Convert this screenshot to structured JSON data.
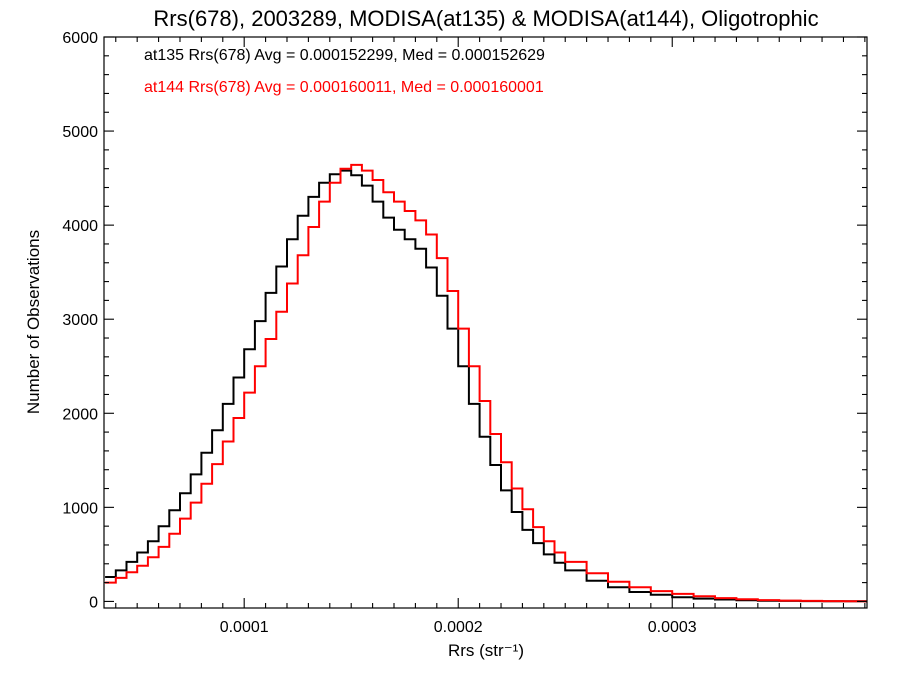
{
  "chart_data": {
    "type": "line",
    "title": "Rrs(678), 2003289, MODISA(at135) & MODISA(at144), Oligotrophic",
    "xlabel": "Rrs (str⁻¹)",
    "ylabel": "Number of Observations",
    "xlim": [
      3.45e-05,
      0.000391
    ],
    "ylim": [
      -70,
      6000
    ],
    "x_ticks": [
      0.0001,
      0.0002,
      0.0003
    ],
    "x_tick_labels": [
      "0.0001",
      "0.0002",
      "0.0003"
    ],
    "y_ticks": [
      0,
      1000,
      2000,
      3000,
      4000,
      5000,
      6000
    ],
    "y_tick_labels": [
      "0",
      "1000",
      "2000",
      "3000",
      "4000",
      "5000",
      "6000"
    ],
    "grid": false,
    "legend_position": "top-left",
    "series": [
      {
        "name": "at135",
        "label": "at135 Rrs(678) Avg = 0.000152299, Med = 0.000152629",
        "color": "#000000",
        "x": [
          3.5e-05,
          4e-05,
          4.5e-05,
          5e-05,
          5.5e-05,
          6e-05,
          6.5e-05,
          7e-05,
          7.5e-05,
          8e-05,
          8.5e-05,
          9e-05,
          9.5e-05,
          0.0001,
          0.000105,
          0.00011,
          0.000115,
          0.00012,
          0.000125,
          0.00013,
          0.000135,
          0.00014,
          0.000145,
          0.00015,
          0.000155,
          0.00016,
          0.000165,
          0.00017,
          0.000175,
          0.00018,
          0.000185,
          0.00019,
          0.000195,
          0.0002,
          0.000205,
          0.00021,
          0.000215,
          0.00022,
          0.000225,
          0.00023,
          0.000235,
          0.00024,
          0.000245,
          0.00025,
          0.00026,
          0.00027,
          0.00028,
          0.00029,
          0.0003,
          0.00031,
          0.00032,
          0.00033,
          0.00034,
          0.00035,
          0.00036,
          0.00037,
          0.00038,
          0.00039
        ],
        "y": [
          260,
          330,
          420,
          520,
          640,
          800,
          970,
          1150,
          1350,
          1580,
          1820,
          2100,
          2380,
          2680,
          2980,
          3280,
          3560,
          3850,
          4100,
          4300,
          4450,
          4540,
          4580,
          4530,
          4420,
          4250,
          4080,
          3950,
          3850,
          3750,
          3550,
          3250,
          2900,
          2500,
          2100,
          1750,
          1450,
          1180,
          950,
          760,
          620,
          500,
          410,
          330,
          220,
          150,
          100,
          70,
          45,
          30,
          20,
          12,
          8,
          5,
          3,
          2,
          1,
          0
        ]
      },
      {
        "name": "at144",
        "label": "at144 Rrs(678) Avg = 0.000160011, Med = 0.000160001",
        "color": "#ff0000",
        "x": [
          3.5e-05,
          4e-05,
          4.5e-05,
          5e-05,
          5.5e-05,
          6e-05,
          6.5e-05,
          7e-05,
          7.5e-05,
          8e-05,
          8.5e-05,
          9e-05,
          9.5e-05,
          0.0001,
          0.000105,
          0.00011,
          0.000115,
          0.00012,
          0.000125,
          0.00013,
          0.000135,
          0.00014,
          0.000145,
          0.00015,
          0.000155,
          0.00016,
          0.000165,
          0.00017,
          0.000175,
          0.00018,
          0.000185,
          0.00019,
          0.000195,
          0.0002,
          0.000205,
          0.00021,
          0.000215,
          0.00022,
          0.000225,
          0.00023,
          0.000235,
          0.00024,
          0.000245,
          0.00025,
          0.00026,
          0.00027,
          0.00028,
          0.00029,
          0.0003,
          0.00031,
          0.00032,
          0.00033,
          0.00034,
          0.00035,
          0.00036,
          0.00037,
          0.00038,
          0.00039
        ],
        "y": [
          200,
          250,
          310,
          380,
          470,
          580,
          720,
          880,
          1050,
          1250,
          1460,
          1700,
          1950,
          2220,
          2500,
          2790,
          3080,
          3380,
          3680,
          3980,
          4250,
          4450,
          4600,
          4640,
          4580,
          4480,
          4350,
          4250,
          4150,
          4050,
          3900,
          3650,
          3300,
          2900,
          2500,
          2130,
          1780,
          1480,
          1200,
          980,
          790,
          640,
          520,
          420,
          300,
          210,
          150,
          110,
          80,
          55,
          35,
          22,
          14,
          9,
          6,
          3,
          2,
          0
        ]
      }
    ]
  }
}
